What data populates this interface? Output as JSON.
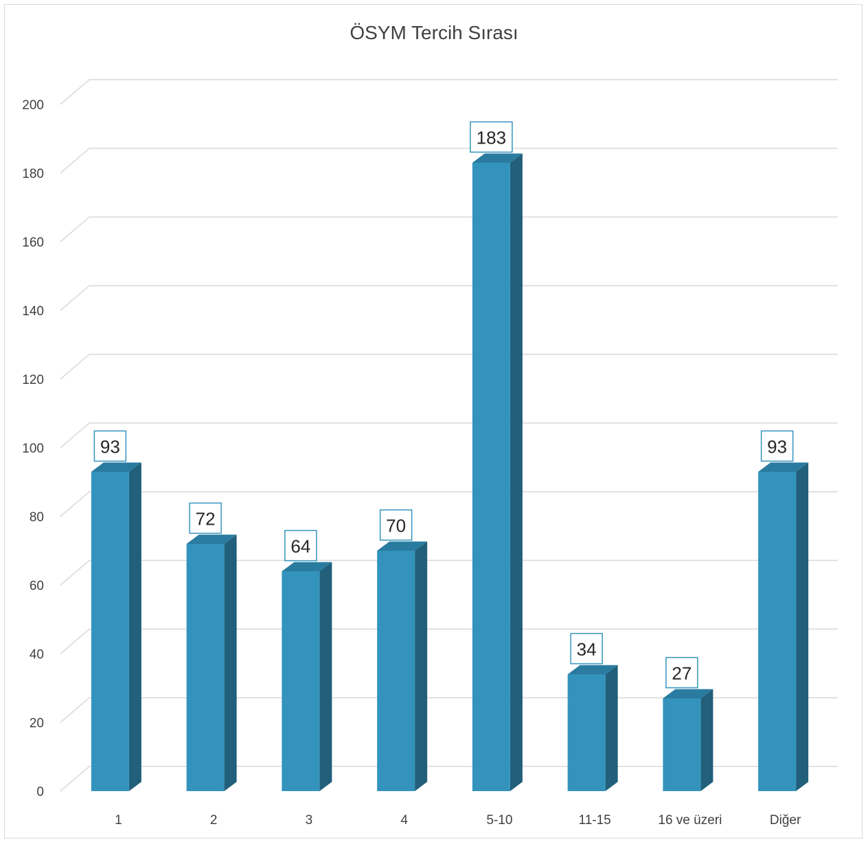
{
  "chart_data": {
    "type": "bar",
    "title": "ÖSYM Tercih Sırası",
    "categories": [
      "1",
      "2",
      "3",
      "4",
      "5-10",
      "11-15",
      "16 ve üzeri",
      "Diğer"
    ],
    "values": [
      93,
      72,
      64,
      70,
      183,
      34,
      27,
      93
    ],
    "data_labels": [
      "93",
      "72",
      "64",
      "70",
      "183",
      "34",
      "27",
      "93"
    ],
    "y_ticks": [
      "0",
      "20",
      "40",
      "60",
      "80",
      "100",
      "120",
      "140",
      "160",
      "180",
      "200"
    ],
    "ylim": [
      0,
      200
    ],
    "xlabel": "",
    "ylabel": "",
    "grid": true,
    "legend": "none",
    "style": "3d-column",
    "colors": {
      "bar_front": "#3393bd",
      "bar_side": "#215f7a",
      "bar_top": "#2a7ba0",
      "grid": "#d9d9d9",
      "label_border": "#3393bd"
    }
  }
}
